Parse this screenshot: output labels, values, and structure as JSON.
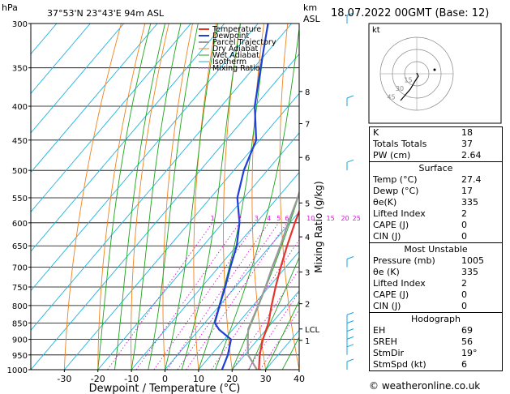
{
  "header": {
    "units_hpa": "hPa",
    "location": "37°53'N  23°43'E  94m  ASL",
    "units_km": "km",
    "units_asl": "ASL",
    "datetime": "18.07.2022  00GMT  (Base: 12)"
  },
  "legend": [
    "Temperature",
    "Dewpoint",
    "Parcel Trajectory",
    "Dry Adiabat",
    "Wet Adiabat",
    "Isotherm",
    "Mixing Ratio"
  ],
  "colors": {
    "temperature": "#e8322c",
    "dewpoint": "#1f3fd8",
    "parcel": "#9a9a9a",
    "dry_adiabat": "#f0821e",
    "wet_adiabat": "#1aa51a",
    "isotherm": "#1fb3e0",
    "mixing_ratio": "#d01dd0",
    "wind": "#1aa5e0"
  },
  "chart_data": {
    "type": "line",
    "title": "",
    "xlabel": "Dewpoint / Temperature (°C)",
    "ylabel": "",
    "y2label": "Mixing Ratio (g/kg)",
    "xlim": [
      -40,
      40
    ],
    "x_ticks": [
      -30,
      -20,
      -10,
      0,
      10,
      20,
      30,
      40
    ],
    "pressure_levels": [
      300,
      350,
      400,
      450,
      500,
      550,
      600,
      650,
      700,
      750,
      800,
      850,
      900,
      950,
      1000
    ],
    "km_ticks": [
      {
        "label": "8",
        "p": 380
      },
      {
        "label": "7",
        "p": 425
      },
      {
        "label": "6",
        "p": 478
      },
      {
        "label": "5",
        "p": 560
      },
      {
        "label": "4",
        "p": 630
      },
      {
        "label": "3",
        "p": 712
      },
      {
        "label": "2",
        "p": 795
      },
      {
        "label": "LCL",
        "p": 868
      },
      {
        "label": "1",
        "p": 903
      }
    ],
    "mixing_ratio_labels": [
      "1",
      "2",
      "3",
      "4",
      "5",
      "6",
      "10",
      "15",
      "20",
      "25"
    ],
    "hodograph_rings": [
      "15",
      "30",
      "45"
    ],
    "hodograph_label": "kt",
    "series": [
      {
        "name": "Temperature",
        "points": [
          [
            1000,
            28
          ],
          [
            950,
            24.5
          ],
          [
            900,
            21.5
          ],
          [
            850,
            19
          ],
          [
            800,
            15.5
          ],
          [
            750,
            12
          ],
          [
            700,
            8.5
          ],
          [
            650,
            5
          ],
          [
            600,
            1.5
          ],
          [
            550,
            -2
          ],
          [
            500,
            -6
          ],
          [
            450,
            -11.5
          ],
          [
            400,
            -17.5
          ],
          [
            350,
            -25
          ],
          [
            300,
            -33.5
          ]
        ]
      },
      {
        "name": "Dewpoint",
        "points": [
          [
            1000,
            17
          ],
          [
            950,
            15
          ],
          [
            900,
            12
          ],
          [
            870,
            6
          ],
          [
            850,
            3
          ],
          [
            800,
            0
          ],
          [
            750,
            -3
          ],
          [
            700,
            -6.5
          ],
          [
            650,
            -10
          ],
          [
            600,
            -15
          ],
          [
            550,
            -22
          ],
          [
            500,
            -27
          ],
          [
            450,
            -31
          ],
          [
            400,
            -40
          ],
          [
            350,
            -48
          ],
          [
            300,
            -57
          ]
        ]
      },
      {
        "name": "Parcel Trajectory",
        "points": [
          [
            1000,
            27.4
          ],
          [
            950,
            21
          ],
          [
            900,
            17
          ],
          [
            868,
            14.5
          ],
          [
            800,
            11.5
          ],
          [
            750,
            9
          ],
          [
            700,
            6
          ],
          [
            650,
            3
          ],
          [
            600,
            -0.5
          ],
          [
            550,
            -4
          ],
          [
            500,
            -8.5
          ],
          [
            450,
            -13.5
          ],
          [
            400,
            -19.5
          ],
          [
            350,
            -27
          ],
          [
            300,
            -36
          ]
        ]
      }
    ]
  },
  "indices": [
    {
      "label": "K",
      "value": "18"
    },
    {
      "label": "Totals Totals",
      "value": "37"
    },
    {
      "label": "PW (cm)",
      "value": "2.64"
    }
  ],
  "surface": {
    "title": "Surface",
    "rows": [
      {
        "label": "Temp (°C)",
        "value": "27.4"
      },
      {
        "label": "Dewp (°C)",
        "value": "17"
      },
      {
        "label": "θe(K)",
        "value": "335"
      },
      {
        "label": "Lifted Index",
        "value": "2"
      },
      {
        "label": "CAPE (J)",
        "value": "0"
      },
      {
        "label": "CIN (J)",
        "value": "0"
      }
    ]
  },
  "most_unstable": {
    "title": "Most Unstable",
    "rows": [
      {
        "label": "Pressure (mb)",
        "value": "1005"
      },
      {
        "label": "θe (K)",
        "value": "335"
      },
      {
        "label": "Lifted Index",
        "value": "2"
      },
      {
        "label": "CAPE (J)",
        "value": "0"
      },
      {
        "label": "CIN (J)",
        "value": "0"
      }
    ]
  },
  "hodograph": {
    "title": "Hodograph",
    "rows": [
      {
        "label": "EH",
        "value": "69"
      },
      {
        "label": "SREH",
        "value": "56"
      },
      {
        "label": "StmDir",
        "value": "19°"
      },
      {
        "label": "StmSpd (kt)",
        "value": "6"
      }
    ]
  },
  "footer": "© weatheronline.co.uk"
}
